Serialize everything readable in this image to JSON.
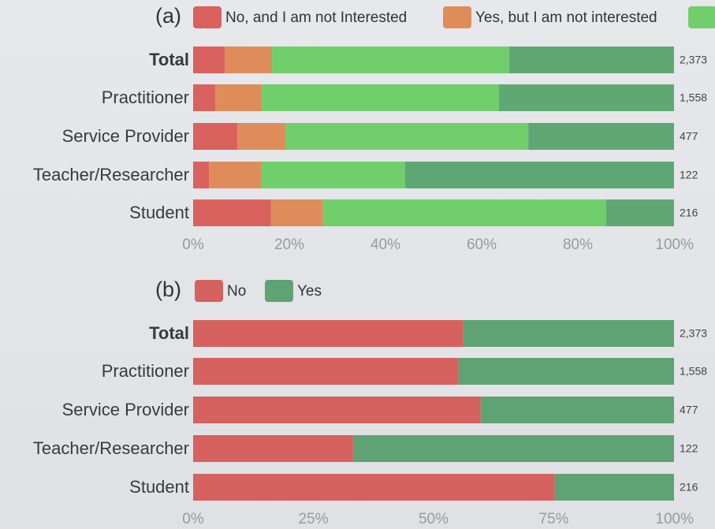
{
  "chart_data": [
    {
      "type": "stacked_bar_horizontal",
      "title": "(a)",
      "categories": [
        "Total",
        "Practitioner",
        "Service Provider",
        "Teacher/Researcher",
        "Student"
      ],
      "series": [
        {
          "name": "No, and I am not Interested",
          "color": "#d9625e",
          "values": [
            6.6,
            4.6,
            9.2,
            3.3,
            16.2
          ]
        },
        {
          "name": "Yes, but I am not interested",
          "color": "#de8d5a",
          "values": [
            9.8,
            9.7,
            10.0,
            10.8,
            10.8
          ]
        },
        {
          "color": "#70cf6b",
          "values": [
            49.3,
            49.3,
            50.5,
            30.0,
            58.9
          ]
        },
        {
          "color": "#5fa874",
          "values": [
            34.3,
            36.4,
            30.3,
            55.9,
            14.1
          ]
        }
      ],
      "count_labels": [
        "2,373",
        "1,558",
        "477",
        "122",
        "216"
      ],
      "xlim": [
        0,
        100
      ],
      "xticks": [
        {
          "value": 0,
          "label": "0%"
        },
        {
          "value": 20,
          "label": "20%"
        },
        {
          "value": 40,
          "label": "40%"
        },
        {
          "value": 60,
          "label": "60%"
        },
        {
          "value": 80,
          "label": "80%"
        },
        {
          "value": 100,
          "label": "100%"
        }
      ],
      "grid": false
    },
    {
      "type": "stacked_bar_horizontal",
      "title": "(b)",
      "categories": [
        "Total",
        "Practitioner",
        "Service Provider",
        "Teacher/Researcher",
        "Student"
      ],
      "series": [
        {
          "name": "No",
          "color": "#d5625f",
          "values": [
            56.2,
            55.2,
            59.8,
            33.4,
            75.2
          ]
        },
        {
          "name": "Yes",
          "color": "#5fa274",
          "values": [
            43.8,
            44.8,
            40.2,
            66.6,
            24.8
          ]
        }
      ],
      "count_labels": [
        "2,373",
        "1,558",
        "477",
        "122",
        "216"
      ],
      "xlim": [
        0,
        100
      ],
      "xticks": [
        {
          "value": 0,
          "label": "0%"
        },
        {
          "value": 25,
          "label": "25%"
        },
        {
          "value": 50,
          "label": "50%"
        },
        {
          "value": 75,
          "label": "75%"
        },
        {
          "value": 100,
          "label": "100%"
        }
      ],
      "grid": false
    }
  ]
}
